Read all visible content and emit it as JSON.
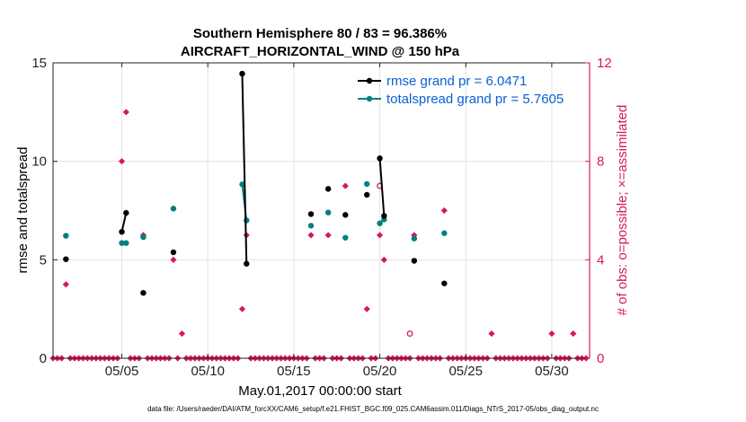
{
  "chart_data": {
    "type": "scatter",
    "title": [
      "Southern Hemisphere 80 / 83 = 96.386%",
      "AIRCRAFT_HORIZONTAL_WIND @ 150 hPa"
    ],
    "xlabel": "May.01,2017 00:00:00 start",
    "ylabel_left": "rmse and totalspread",
    "ylabel_right": "# of obs: o=possible; ×=assimilated",
    "xlim": [
      1,
      32.2
    ],
    "ylim_left": [
      0,
      15
    ],
    "ylim_right": [
      0,
      12
    ],
    "x_ticks": [
      {
        "x": 5,
        "label": "05/05"
      },
      {
        "x": 10,
        "label": "05/10"
      },
      {
        "x": 15,
        "label": "05/15"
      },
      {
        "x": 20,
        "label": "05/20"
      },
      {
        "x": 25,
        "label": "05/25"
      },
      {
        "x": 30,
        "label": "05/30"
      }
    ],
    "y_ticks_left": [
      0,
      5,
      10,
      15
    ],
    "y_ticks_right": [
      0,
      4,
      8,
      12
    ],
    "grid": true,
    "legend_placement": "top-right",
    "colors": {
      "rmse": "#000000",
      "spread": "#008080",
      "obs": "#d6185c",
      "legend_text": "#0b5fd6"
    },
    "series": [
      {
        "name": "rmse grand pr = 6.0471",
        "axis": "left",
        "marker": "dot",
        "segments": [
          [
            [
              1.75,
              5.03
            ]
          ],
          [
            [
              5.0,
              6.42
            ],
            [
              5.25,
              7.38
            ]
          ],
          [
            [
              6.25,
              3.32
            ]
          ],
          [
            [
              8.0,
              5.38
            ]
          ],
          [
            [
              12.0,
              14.45
            ],
            [
              12.25,
              4.8
            ]
          ],
          [
            [
              16.0,
              7.32
            ]
          ],
          [
            [
              17.0,
              8.6
            ]
          ],
          [
            [
              18.0,
              7.28
            ]
          ],
          [
            [
              19.25,
              8.3
            ]
          ],
          [
            [
              20.0,
              10.15
            ],
            [
              20.25,
              7.23
            ]
          ],
          [
            [
              22.0,
              4.95
            ]
          ],
          [
            [
              23.75,
              3.8
            ]
          ]
        ]
      },
      {
        "name": "totalspread grand pr = 5.7605",
        "axis": "left",
        "marker": "dot",
        "segments": [
          [
            [
              1.75,
              6.22
            ]
          ],
          [
            [
              5.0,
              5.85
            ],
            [
              5.25,
              5.85
            ]
          ],
          [
            [
              6.25,
              6.15
            ]
          ],
          [
            [
              8.0,
              7.6
            ]
          ],
          [
            [
              12.0,
              8.83
            ],
            [
              12.25,
              7.0
            ]
          ],
          [
            [
              16.0,
              6.73
            ]
          ],
          [
            [
              17.0,
              7.4
            ]
          ],
          [
            [
              18.0,
              6.12
            ]
          ],
          [
            [
              19.25,
              8.85
            ]
          ],
          [
            [
              20.0,
              6.85
            ],
            [
              20.25,
              7.05
            ]
          ],
          [
            [
              22.0,
              6.08
            ]
          ],
          [
            [
              23.75,
              6.35
            ]
          ]
        ]
      },
      {
        "name": "assimilated",
        "axis": "right",
        "marker": "x",
        "points": [
          [
            1.75,
            3
          ],
          [
            5.0,
            8
          ],
          [
            5.25,
            10
          ],
          [
            6.25,
            5
          ],
          [
            8.0,
            4
          ],
          [
            8.5,
            1
          ],
          [
            12.0,
            2
          ],
          [
            12.25,
            5
          ],
          [
            16.0,
            5
          ],
          [
            17.0,
            5
          ],
          [
            18.0,
            7
          ],
          [
            19.25,
            2
          ],
          [
            20.0,
            5
          ],
          [
            20.25,
            4
          ],
          [
            22.0,
            5
          ],
          [
            23.75,
            6
          ],
          [
            26.5,
            1
          ],
          [
            30.0,
            1
          ],
          [
            31.25,
            1
          ]
        ],
        "zeros_from": 1.0,
        "zeros_to": 32.0,
        "zeros_step": 0.25
      },
      {
        "name": "possible",
        "axis": "right",
        "marker": "o",
        "points": [
          [
            20.0,
            7
          ],
          [
            21.75,
            1
          ]
        ]
      }
    ]
  },
  "footnote": "data file: /Users/raeder/DAI/ATM_forcXX/CAM6_setup/f.e21.FHIST_BGC.f09_025.CAM6assim.011/Diags_NTrS_2017-05/obs_diag_output.nc"
}
